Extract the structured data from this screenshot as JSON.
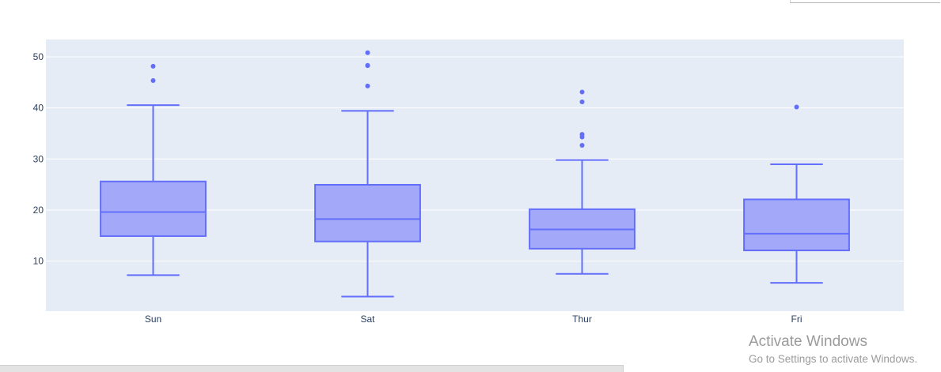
{
  "chart_data": {
    "type": "box",
    "title": "",
    "xlabel": "",
    "ylabel": "",
    "categories": [
      "Sun",
      "Sat",
      "Thur",
      "Fri"
    ],
    "ylim": [
      0.2,
      53.4
    ],
    "yticks": [
      10,
      20,
      30,
      40,
      50
    ],
    "grid": true,
    "legend": "none",
    "boxes": [
      {
        "category": "Sun",
        "lower_fence": 7.25,
        "q1": 14.9,
        "median": 19.6,
        "q3": 25.6,
        "upper_fence": 40.55,
        "outliers": [
          45.35,
          48.17
        ]
      },
      {
        "category": "Sat",
        "lower_fence": 3.07,
        "q1": 13.85,
        "median": 18.24,
        "q3": 24.95,
        "upper_fence": 39.42,
        "outliers": [
          44.3,
          48.27,
          48.33,
          50.81
        ]
      },
      {
        "category": "Thur",
        "lower_fence": 7.51,
        "q1": 12.44,
        "median": 16.2,
        "q3": 20.16,
        "upper_fence": 29.8,
        "outliers": [
          32.68,
          34.3,
          34.83,
          41.19,
          43.11
        ]
      },
      {
        "category": "Fri",
        "lower_fence": 5.75,
        "q1": 12.1,
        "median": 15.38,
        "q3": 22.09,
        "upper_fence": 28.97,
        "outliers": [
          40.17
        ]
      }
    ],
    "colors": {
      "line": "#636efa",
      "fill": "#a3a9f8",
      "plot_background": "#e5ecf6",
      "gridline": "#ffffff",
      "tick_text": "#2a3f5f"
    }
  },
  "watermark": {
    "title": "Activate Windows",
    "subtitle": "Go to Settings to activate Windows."
  }
}
